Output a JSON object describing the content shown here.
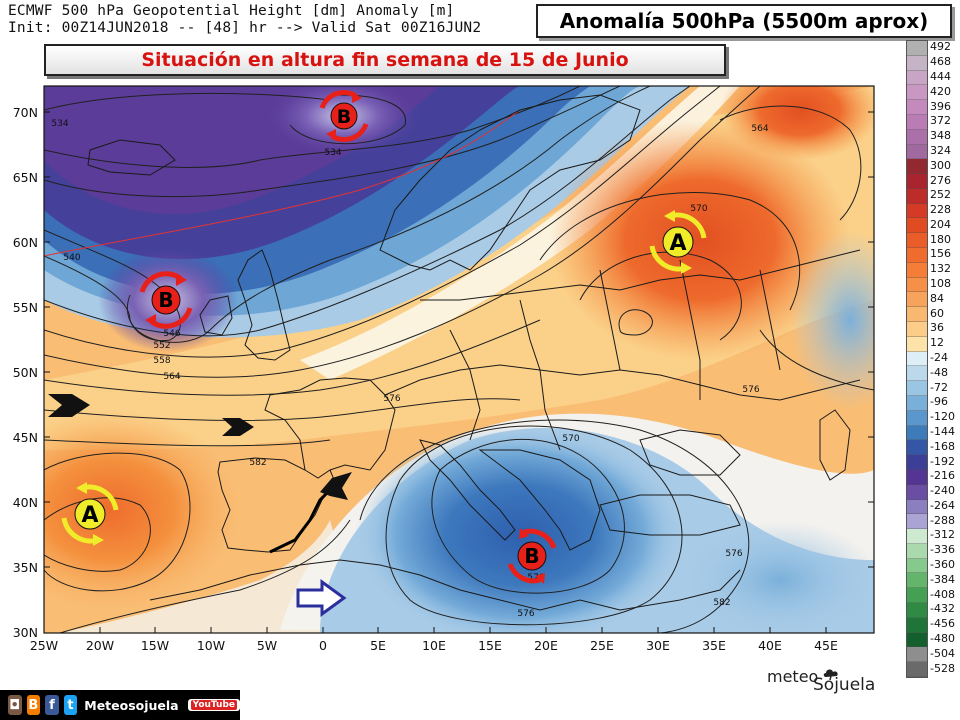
{
  "header": {
    "line1": "ECMWF 500 hPa Geopotential Height [dm] Anomaly [m]",
    "line2": "Init: 00Z14JUN2018 -- [48] hr --> Valid Sat 00Z16JUN2",
    "title": "Anomalía 500hPa (5500m aprox)",
    "subtitle": "Situación en altura fin semana de 15 de Junio"
  },
  "map": {
    "lat_labels": [
      "70N",
      "65N",
      "60N",
      "55N",
      "50N",
      "45N",
      "40N",
      "35N",
      "30N"
    ],
    "lon_labels": [
      "25W",
      "20W",
      "15W",
      "10W",
      "5W",
      "0",
      "5E",
      "10E",
      "15E",
      "20E",
      "25E",
      "30E",
      "35E",
      "40E",
      "45E"
    ],
    "contour_labels": [
      "534",
      "534",
      "540",
      "546",
      "552",
      "558",
      "564",
      "576",
      "582",
      "570",
      "576",
      "570",
      "570",
      "576",
      "576",
      "582",
      "564"
    ],
    "pressure_systems": [
      {
        "letter": "B",
        "type": "low"
      },
      {
        "letter": "B",
        "type": "low"
      },
      {
        "letter": "B",
        "type": "low"
      },
      {
        "letter": "A",
        "type": "high"
      },
      {
        "letter": "A",
        "type": "high"
      }
    ],
    "colors": {
      "low_marker": "#e8201a",
      "high_marker": "#f1ec2a",
      "flow_arrow_black": "#111111",
      "flow_arrow_blue": "#2b2f9e"
    }
  },
  "legend": {
    "values": [
      "492",
      "468",
      "444",
      "420",
      "396",
      "372",
      "348",
      "324",
      "300",
      "276",
      "252",
      "228",
      "204",
      "180",
      "156",
      "132",
      "108",
      "84",
      "60",
      "36",
      "12",
      "-24",
      "-48",
      "-72",
      "-96",
      "-120",
      "-144",
      "-168",
      "-192",
      "-216",
      "-240",
      "-264",
      "-288",
      "-312",
      "-336",
      "-360",
      "-384",
      "-408",
      "-432",
      "-456",
      "-480",
      "-504",
      "-528"
    ],
    "colors": [
      "#b0b0b0",
      "#c4b4c6",
      "#c9a5c5",
      "#c998c2",
      "#c48abd",
      "#b97cb4",
      "#ab70aa",
      "#a06aa0",
      "#922830",
      "#a8242e",
      "#be2c2a",
      "#d43a26",
      "#e14b22",
      "#ea5c28",
      "#f06c2e",
      "#f47e38",
      "#f69048",
      "#f8a35c",
      "#f9b870",
      "#fbcd88",
      "#fde3aa",
      "#ddeef6",
      "#bcd9ec",
      "#9ac6e4",
      "#78b0da",
      "#5997cc",
      "#3e7bbb",
      "#3556a6",
      "#3c3e98",
      "#553593",
      "#6a4ea4",
      "#8b7fc0",
      "#a9a4d4",
      "#cde9cf",
      "#a9d9ad",
      "#86c98c",
      "#63b56c",
      "#44a052",
      "#2f8a44",
      "#1f7438",
      "#135f2e",
      "#8e8e8e",
      "#6a6a6a"
    ]
  },
  "footer": {
    "brand": "Meteosojuela",
    "icons": [
      "instagram-icon",
      "blogger-icon",
      "facebook-icon",
      "twitter-icon",
      "youtube-icon"
    ],
    "logo_a": "meteo",
    "logo_b": "Sojuela",
    "youtube": "YouTube"
  }
}
